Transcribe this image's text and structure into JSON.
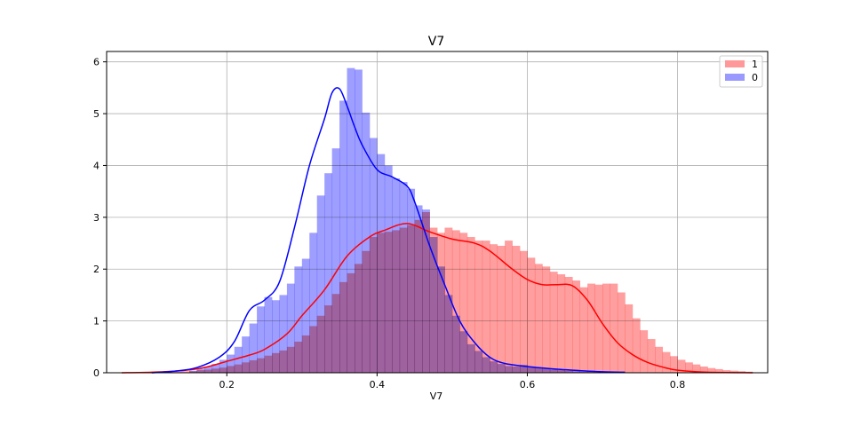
{
  "chart_data": {
    "type": "histogram",
    "title": "V7",
    "xlabel": "V7",
    "ylabel": "",
    "xlim": [
      0.04,
      0.92
    ],
    "ylim": [
      0,
      6.2
    ],
    "xticks": [
      0.2,
      0.4,
      0.6,
      0.8
    ],
    "xtick_labels": [
      "0.2",
      "0.4",
      "0.6",
      "0.8"
    ],
    "yticks": [
      0,
      1,
      2,
      3,
      4,
      5,
      6
    ],
    "ytick_labels": [
      "0",
      "1",
      "2",
      "3",
      "4",
      "5",
      "6"
    ],
    "grid": true,
    "legend_position": "top-right",
    "bin_width": 0.01,
    "series": [
      {
        "name": "1",
        "color": "#ff0000",
        "fill_color": "#ff9999",
        "bin_start": 0.1,
        "hist_values": [
          0.01,
          0.01,
          0.02,
          0.02,
          0.03,
          0.03,
          0.05,
          0.06,
          0.08,
          0.1,
          0.13,
          0.16,
          0.2,
          0.24,
          0.28,
          0.33,
          0.38,
          0.43,
          0.5,
          0.6,
          0.72,
          0.9,
          1.1,
          1.3,
          1.52,
          1.75,
          1.92,
          2.1,
          2.35,
          2.62,
          2.7,
          2.72,
          2.75,
          2.8,
          2.85,
          2.95,
          3.1,
          2.8,
          2.7,
          2.8,
          2.75,
          2.7,
          2.62,
          2.55,
          2.55,
          2.48,
          2.45,
          2.55,
          2.45,
          2.35,
          2.22,
          2.1,
          2.05,
          1.95,
          1.9,
          1.85,
          1.78,
          1.65,
          1.72,
          1.7,
          1.72,
          1.72,
          1.55,
          1.32,
          1.05,
          0.82,
          0.65,
          0.5,
          0.4,
          0.32,
          0.25,
          0.2,
          0.16,
          0.12,
          0.09,
          0.07,
          0.05,
          0.04,
          0.03,
          0.02
        ],
        "kde_x": [
          0.06,
          0.1,
          0.14,
          0.17,
          0.2,
          0.23,
          0.25,
          0.28,
          0.3,
          0.33,
          0.36,
          0.39,
          0.41,
          0.44,
          0.47,
          0.5,
          0.53,
          0.55,
          0.58,
          0.6,
          0.62,
          0.64,
          0.66,
          0.68,
          0.7,
          0.72,
          0.74,
          0.76,
          0.78,
          0.8,
          0.84,
          0.9
        ],
        "kde_y": [
          0.0,
          0.01,
          0.04,
          0.1,
          0.22,
          0.34,
          0.45,
          0.75,
          1.1,
          1.6,
          2.25,
          2.62,
          2.75,
          2.88,
          2.72,
          2.58,
          2.5,
          2.35,
          2.0,
          1.8,
          1.7,
          1.7,
          1.68,
          1.4,
          0.95,
          0.58,
          0.35,
          0.2,
          0.11,
          0.05,
          0.01,
          0.0
        ]
      },
      {
        "name": "0",
        "color": "#0000ff",
        "fill_color": "#9999ff",
        "bin_start": 0.15,
        "hist_values": [
          0.04,
          0.08,
          0.12,
          0.17,
          0.25,
          0.35,
          0.5,
          0.7,
          0.95,
          1.28,
          1.46,
          1.4,
          1.5,
          1.72,
          2.05,
          2.2,
          2.7,
          3.42,
          3.85,
          4.33,
          5.25,
          5.88,
          5.85,
          5.02,
          4.53,
          4.22,
          4.0,
          3.75,
          3.68,
          3.55,
          3.23,
          3.15,
          2.62,
          2.05,
          1.5,
          1.1,
          0.8,
          0.55,
          0.42,
          0.3,
          0.22,
          0.17,
          0.13,
          0.12,
          0.15,
          0.12,
          0.1,
          0.08,
          0.06,
          0.05,
          0.04,
          0.03,
          0.02,
          0.02,
          0.01,
          0.01
        ],
        "kde_x": [
          0.1,
          0.13,
          0.16,
          0.19,
          0.21,
          0.23,
          0.25,
          0.27,
          0.29,
          0.31,
          0.33,
          0.34,
          0.35,
          0.36,
          0.37,
          0.38,
          0.4,
          0.42,
          0.44,
          0.45,
          0.47,
          0.49,
          0.51,
          0.53,
          0.55,
          0.57,
          0.6,
          0.63,
          0.66,
          0.7,
          0.73
        ],
        "kde_y": [
          0.0,
          0.03,
          0.1,
          0.3,
          0.6,
          1.2,
          1.4,
          1.75,
          2.8,
          4.0,
          4.9,
          5.4,
          5.48,
          5.15,
          4.75,
          4.4,
          3.92,
          3.78,
          3.6,
          3.3,
          2.45,
          1.7,
          1.0,
          0.58,
          0.3,
          0.18,
          0.12,
          0.08,
          0.05,
          0.02,
          0.01
        ]
      }
    ]
  }
}
